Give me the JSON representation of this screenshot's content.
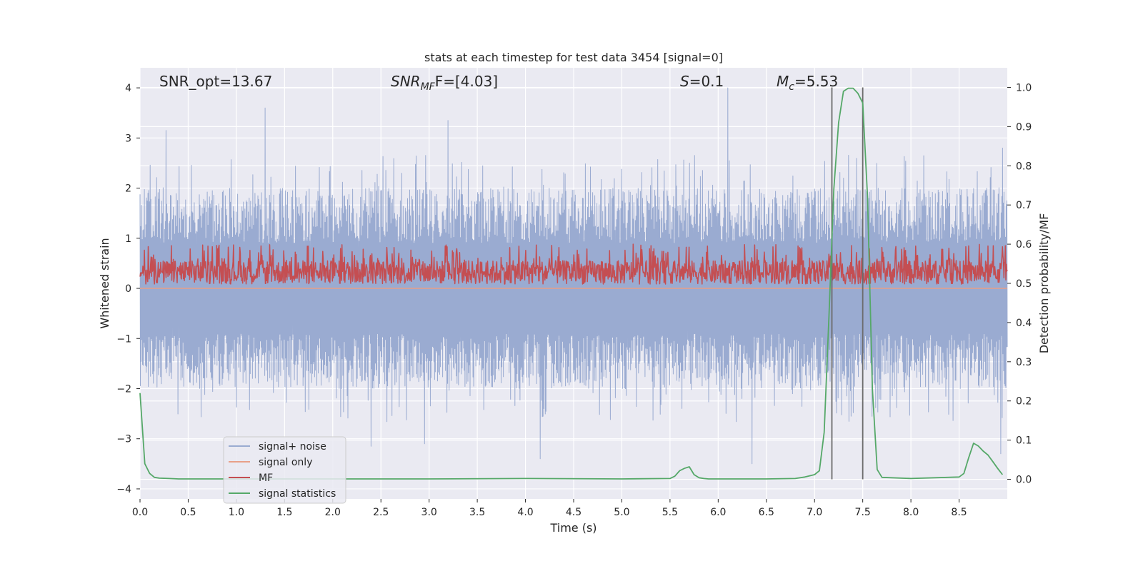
{
  "chart_data": {
    "type": "line",
    "title": "stats at each timestep for test data 3454 [signal=0]",
    "xlabel": "Time (s)",
    "ylabel_left": "Whitened strain",
    "ylabel_right": "Detection probability/MF",
    "xlim": [
      0.0,
      9.0
    ],
    "ylim_left": [
      -4.2,
      4.4
    ],
    "ylim_right": [
      -0.05,
      1.05
    ],
    "x_ticks": [
      "0.0",
      "0.5",
      "1.0",
      "1.5",
      "2.0",
      "2.5",
      "3.0",
      "3.5",
      "4.0",
      "4.5",
      "5.0",
      "5.5",
      "6.0",
      "6.5",
      "7.0",
      "7.5",
      "8.0",
      "8.5"
    ],
    "y_ticks_left": [
      "−4",
      "−3",
      "−2",
      "−1",
      "0",
      "1",
      "2",
      "3",
      "4"
    ],
    "y_ticks_right": [
      "0.0",
      "0.1",
      "0.2",
      "0.3",
      "0.4",
      "0.5",
      "0.6",
      "0.7",
      "0.8",
      "0.9",
      "1.0"
    ],
    "grid": true,
    "legend_position": "lower-left",
    "annotations": {
      "snr_opt": "SNR_opt=13.67",
      "snr_mf_main": "SNR",
      "snr_mf_sub": "MF",
      "snr_mf_value": "F=[4.03]",
      "s_main": "S",
      "s_value": "=0.1",
      "mc_main": "M",
      "mc_sub": "c",
      "mc_value": "=5.53"
    },
    "vertical_lines_x": [
      7.18,
      7.5
    ],
    "colors": {
      "background": "#eaeaf2",
      "grid": "#ffffff",
      "signal_noise": "#9aabd1",
      "signal_only": "#e8a088",
      "mf": "#c44e52",
      "signal_statistics": "#55a868",
      "vline": "#6b6b6b"
    },
    "series": [
      {
        "name": "signal+ noise",
        "axis": "left",
        "color": "#9aabd1",
        "description": "noise band approx |y| ~ 1.0-2.0, spikes up to 4.0",
        "x_range": [
          0.0,
          9.0
        ],
        "envelope": [
          -2.0,
          2.0
        ],
        "peaks": [
          [
            0.27,
            3.15
          ],
          [
            1.3,
            3.6
          ],
          [
            3.2,
            3.35
          ],
          [
            6.1,
            4.0
          ],
          [
            7.3,
            2.2
          ],
          [
            8.95,
            2.8
          ],
          [
            4.15,
            -3.4
          ],
          [
            2.4,
            -3.15
          ],
          [
            2.95,
            -3.1
          ],
          [
            6.35,
            -3.5
          ],
          [
            8.93,
            -3.3
          ]
        ]
      },
      {
        "name": "signal only",
        "axis": "left",
        "color": "#e8a088",
        "x": [
          0.0,
          9.0
        ],
        "y": [
          0.0,
          0.0
        ]
      },
      {
        "name": "MF",
        "axis": "right",
        "color": "#c44e52",
        "description": "noise trace between approx 0.48 and 0.6 on right axis",
        "x_range": [
          0.0,
          9.0
        ],
        "range": [
          0.48,
          0.6
        ]
      },
      {
        "name": "signal statistics",
        "axis": "right",
        "color": "#55a868",
        "x": [
          0.0,
          0.05,
          0.1,
          0.15,
          0.2,
          0.3,
          0.4,
          1.0,
          2.0,
          3.0,
          4.0,
          5.0,
          5.5,
          5.55,
          5.6,
          5.65,
          5.7,
          5.75,
          5.8,
          5.85,
          5.9,
          6.5,
          6.8,
          6.9,
          7.0,
          7.05,
          7.1,
          7.15,
          7.2,
          7.25,
          7.3,
          7.35,
          7.4,
          7.45,
          7.5,
          7.55,
          7.6,
          7.65,
          7.7,
          8.0,
          8.5,
          8.55,
          8.6,
          8.65,
          8.7,
          8.75,
          8.8,
          8.85,
          8.9,
          8.95
        ],
        "y": [
          0.22,
          0.04,
          0.015,
          0.005,
          0.003,
          0.002,
          0.001,
          0.001,
          0.001,
          0.001,
          0.002,
          0.001,
          0.002,
          0.008,
          0.022,
          0.028,
          0.032,
          0.012,
          0.004,
          0.002,
          0.001,
          0.001,
          0.002,
          0.006,
          0.012,
          0.022,
          0.12,
          0.42,
          0.74,
          0.91,
          0.99,
          0.998,
          0.998,
          0.985,
          0.96,
          0.72,
          0.23,
          0.025,
          0.005,
          0.002,
          0.006,
          0.015,
          0.055,
          0.092,
          0.085,
          0.072,
          0.062,
          0.045,
          0.028,
          0.012
        ]
      }
    ]
  }
}
